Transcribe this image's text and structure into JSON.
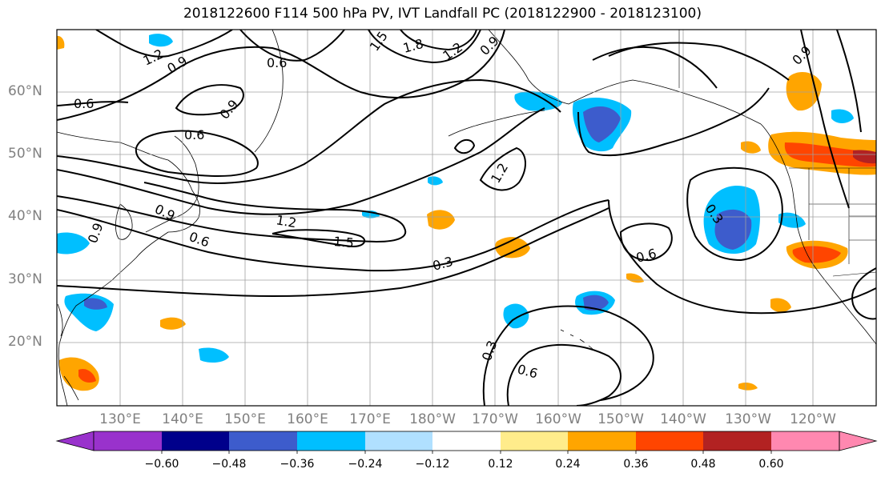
{
  "title": "2018122600 F114 500 hPa PV, IVT Landfall PC (2018122900 - 2018123100)",
  "map": {
    "projection": "PlateCarree",
    "lon_range_east": [
      120,
      251
    ],
    "lat_range": [
      10,
      70
    ],
    "gridlines": true,
    "lat_labels": [
      "60°N",
      "50°N",
      "40°N",
      "30°N",
      "20°N"
    ],
    "lon_labels": [
      "130°E",
      "140°E",
      "150°E",
      "160°E",
      "170°E",
      "180°W",
      "170°W",
      "160°W",
      "150°W",
      "140°W",
      "130°W",
      "120°W"
    ],
    "pv_contour_labels": [
      "1.2",
      "0.9",
      "0.6",
      "0.6",
      "0.9",
      "0.6",
      "1.5",
      "1.8",
      "1.2",
      "0.9",
      "0.9",
      "1.2",
      "1.2",
      "0.9",
      "0.6",
      "1.5",
      "0.3",
      "0.6",
      "0.3",
      "0.6",
      "0.3",
      "0.9"
    ]
  },
  "colorbar": {
    "ticks": [
      "−0.60",
      "−0.48",
      "−0.36",
      "−0.24",
      "−0.12",
      "0.12",
      "0.24",
      "0.36",
      "0.48",
      "0.60"
    ],
    "colors": [
      "#9932cc",
      "#00008b",
      "#3d5ccc",
      "#00bfff",
      "#b0e0ff",
      "#ffffff",
      "#ffec8b",
      "#ffa500",
      "#ff4500",
      "#b22222",
      "#ff88b0"
    ]
  }
}
